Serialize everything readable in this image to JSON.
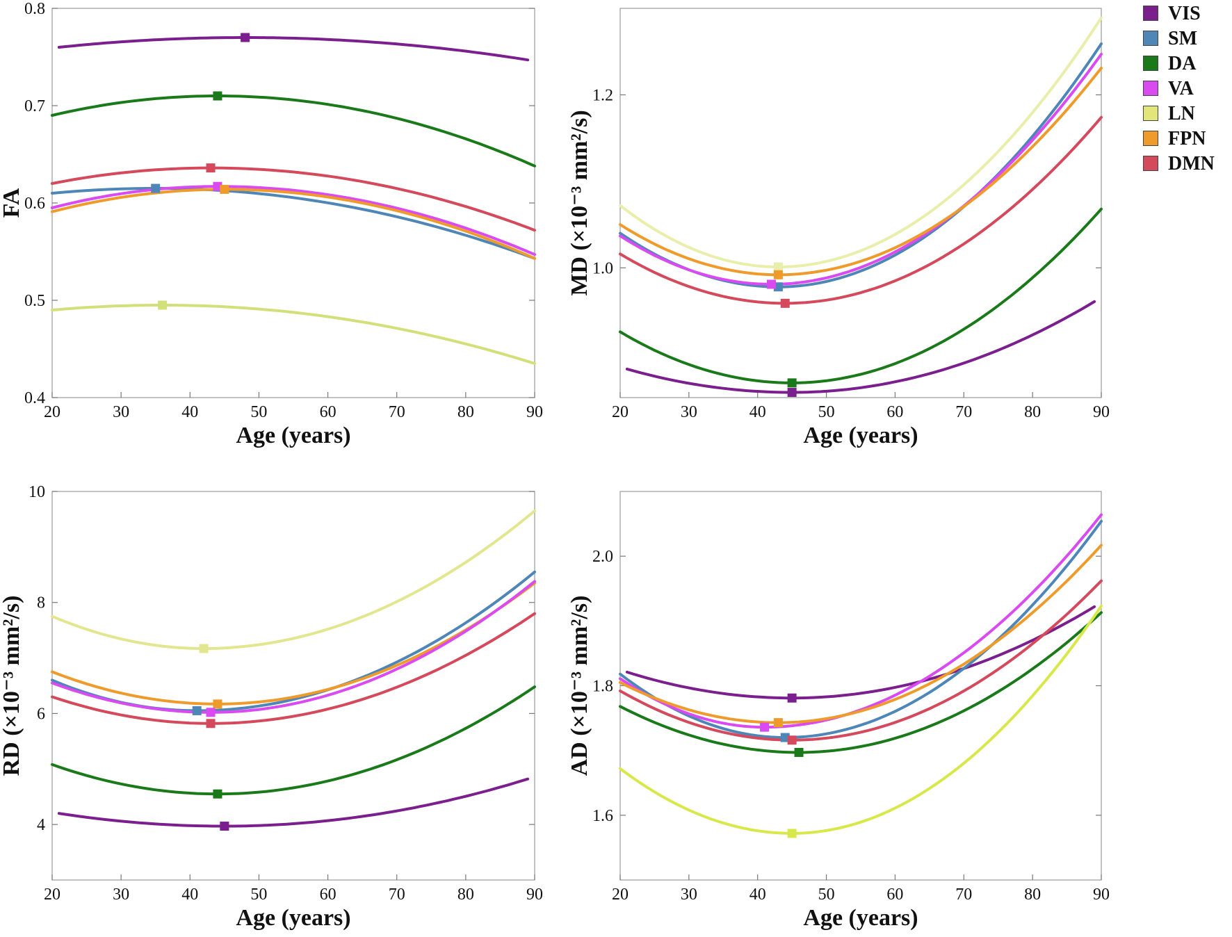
{
  "legend": [
    {
      "key": "VIS",
      "label": "VIS",
      "color": "#7B1F8E"
    },
    {
      "key": "SM",
      "label": "SM",
      "color": "#4E86B8"
    },
    {
      "key": "DA",
      "label": "DA",
      "color": "#1A7A1A"
    },
    {
      "key": "VA",
      "label": "VA",
      "color": "#D94AF0"
    },
    {
      "key": "LN",
      "label": "LN",
      "color": "#E2E67A"
    },
    {
      "key": "FPN",
      "label": "FPN",
      "color": "#EE9B2C"
    },
    {
      "key": "DMN",
      "label": "DMN",
      "color": "#D44A5C"
    }
  ],
  "chart_data": [
    {
      "type": "line",
      "title": "",
      "xlabel": "Age (years)",
      "ylabel": "FA",
      "xlim": [
        20,
        90
      ],
      "ylim": [
        0.4,
        0.8
      ],
      "xticks": [
        "20",
        "30",
        "40",
        "50",
        "60",
        "70",
        "80",
        "90"
      ],
      "yticks": [
        "0.4",
        "0.5",
        "0.6",
        "0.7",
        "0.8"
      ],
      "series": [
        {
          "name": "VIS",
          "color": "#7B1F8E",
          "x_start": 21,
          "x_end": 89,
          "y_start": 0.76,
          "vertex_x": 48,
          "vertex_y": 0.77,
          "y_end": 0.747
        },
        {
          "name": "DA",
          "color": "#1A7A1A",
          "x_start": 20,
          "x_end": 90,
          "y_start": 0.69,
          "vertex_x": 44,
          "vertex_y": 0.71,
          "y_end": 0.638
        },
        {
          "name": "DMN",
          "color": "#D44A5C",
          "x_start": 20,
          "x_end": 90,
          "y_start": 0.62,
          "vertex_x": 43,
          "vertex_y": 0.636,
          "y_end": 0.572
        },
        {
          "name": "SM",
          "color": "#4E86B8",
          "x_start": 20,
          "x_end": 90,
          "y_start": 0.61,
          "vertex_x": 35,
          "vertex_y": 0.615,
          "y_end": 0.543
        },
        {
          "name": "VA",
          "color": "#D94AF0",
          "x_start": 20,
          "x_end": 90,
          "y_start": 0.595,
          "vertex_x": 44,
          "vertex_y": 0.617,
          "y_end": 0.547
        },
        {
          "name": "FPN",
          "color": "#EE9B2C",
          "x_start": 20,
          "x_end": 90,
          "y_start": 0.591,
          "vertex_x": 45,
          "vertex_y": 0.614,
          "y_end": 0.543
        },
        {
          "name": "LN",
          "color": "#D2E07A",
          "x_start": 20,
          "x_end": 90,
          "y_start": 0.49,
          "vertex_x": 36,
          "vertex_y": 0.495,
          "y_end": 0.435
        }
      ]
    },
    {
      "type": "line",
      "title": "",
      "xlabel": "Age (years)",
      "ylabel": "MD (×10⁻³ mm²/s)",
      "xlim": [
        20,
        90
      ],
      "ylim": [
        0.85,
        1.3
      ],
      "xticks": [
        "20",
        "30",
        "40",
        "50",
        "60",
        "70",
        "80",
        "90"
      ],
      "yticks": [
        "1.0",
        "1.2"
      ],
      "ytick_values": [
        1.0,
        1.2
      ],
      "series": [
        {
          "name": "LN",
          "color": "#E9EEAA",
          "x_start": 20,
          "x_end": 90,
          "y_start": 1.072,
          "vertex_x": 43,
          "vertex_y": 1.001,
          "y_end": 1.289
        },
        {
          "name": "SM",
          "color": "#4E86B8",
          "x_start": 20,
          "x_end": 90,
          "y_start": 1.04,
          "vertex_x": 43,
          "vertex_y": 0.978,
          "y_end": 1.259
        },
        {
          "name": "VA",
          "color": "#D94AF0",
          "x_start": 20,
          "x_end": 90,
          "y_start": 1.037,
          "vertex_x": 42,
          "vertex_y": 0.981,
          "y_end": 1.247
        },
        {
          "name": "FPN",
          "color": "#EE9B2C",
          "x_start": 20,
          "x_end": 90,
          "y_start": 1.05,
          "vertex_x": 43,
          "vertex_y": 0.992,
          "y_end": 1.231
        },
        {
          "name": "DMN",
          "color": "#D44A5C",
          "x_start": 20,
          "x_end": 90,
          "y_start": 1.016,
          "vertex_x": 44,
          "vertex_y": 0.959,
          "y_end": 1.174
        },
        {
          "name": "DA",
          "color": "#1A7A1A",
          "x_start": 20,
          "x_end": 90,
          "y_start": 0.926,
          "vertex_x": 45,
          "vertex_y": 0.867,
          "y_end": 1.068
        },
        {
          "name": "VIS",
          "color": "#7B1F8E",
          "x_start": 21,
          "x_end": 89,
          "y_start": 0.883,
          "vertex_x": 45,
          "vertex_y": 0.856,
          "y_end": 0.961
        }
      ]
    },
    {
      "type": "line",
      "title": "",
      "xlabel": "Age (years)",
      "ylabel": "RD (×10⁻³ mm²/s)",
      "xlim": [
        20,
        90
      ],
      "ylim": [
        3.0,
        10.0
      ],
      "xticks": [
        "20",
        "30",
        "40",
        "50",
        "60",
        "70",
        "80",
        "90"
      ],
      "yticks": [
        "4",
        "6",
        "8",
        "10"
      ],
      "series": [
        {
          "name": "LN",
          "color": "#E2E68E",
          "x_start": 20,
          "x_end": 90,
          "y_start": 7.75,
          "vertex_x": 42,
          "vertex_y": 7.17,
          "y_end": 9.65
        },
        {
          "name": "SM",
          "color": "#4E86B8",
          "x_start": 20,
          "x_end": 90,
          "y_start": 6.6,
          "vertex_x": 41,
          "vertex_y": 6.05,
          "y_end": 8.55
        },
        {
          "name": "FPN",
          "color": "#EE9B2C",
          "x_start": 20,
          "x_end": 90,
          "y_start": 6.75,
          "vertex_x": 44,
          "vertex_y": 6.17,
          "y_end": 8.35
        },
        {
          "name": "VA",
          "color": "#D94AF0",
          "x_start": 20,
          "x_end": 90,
          "y_start": 6.55,
          "vertex_x": 43,
          "vertex_y": 6.02,
          "y_end": 8.38
        },
        {
          "name": "DMN",
          "color": "#D44A5C",
          "x_start": 20,
          "x_end": 90,
          "y_start": 6.3,
          "vertex_x": 43,
          "vertex_y": 5.82,
          "y_end": 7.8
        },
        {
          "name": "DA",
          "color": "#1A7A1A",
          "x_start": 20,
          "x_end": 90,
          "y_start": 5.08,
          "vertex_x": 44,
          "vertex_y": 4.55,
          "y_end": 6.48
        },
        {
          "name": "VIS",
          "color": "#7B1F8E",
          "x_start": 21,
          "x_end": 89,
          "y_start": 4.2,
          "vertex_x": 45,
          "vertex_y": 3.97,
          "y_end": 4.82
        }
      ]
    },
    {
      "type": "line",
      "title": "",
      "xlabel": "Age (years)",
      "ylabel": "AD (×10⁻³ mm²/s)",
      "xlim": [
        20,
        90
      ],
      "ylim": [
        1.5,
        2.1
      ],
      "xticks": [
        "20",
        "30",
        "40",
        "50",
        "60",
        "70",
        "80",
        "90"
      ],
      "yticks": [
        "1.6",
        "1.8",
        "2.0"
      ],
      "series": [
        {
          "name": "VIS",
          "color": "#7B1F8E",
          "x_start": 21,
          "x_end": 89,
          "y_start": 1.821,
          "vertex_x": 45,
          "vertex_y": 1.781,
          "y_end": 1.922
        },
        {
          "name": "SM",
          "color": "#4E86B8",
          "x_start": 20,
          "x_end": 90,
          "y_start": 1.818,
          "vertex_x": 44,
          "vertex_y": 1.72,
          "y_end": 2.054
        },
        {
          "name": "VA",
          "color": "#D94AF0",
          "x_start": 20,
          "x_end": 90,
          "y_start": 1.811,
          "vertex_x": 41,
          "vertex_y": 1.736,
          "y_end": 2.064
        },
        {
          "name": "FPN",
          "color": "#EE9B2C",
          "x_start": 20,
          "x_end": 90,
          "y_start": 1.805,
          "vertex_x": 43,
          "vertex_y": 1.743,
          "y_end": 2.017
        },
        {
          "name": "DMN",
          "color": "#D44A5C",
          "x_start": 20,
          "x_end": 90,
          "y_start": 1.792,
          "vertex_x": 45,
          "vertex_y": 1.716,
          "y_end": 1.962
        },
        {
          "name": "DA",
          "color": "#1A7A1A",
          "x_start": 20,
          "x_end": 90,
          "y_start": 1.768,
          "vertex_x": 46,
          "vertex_y": 1.697,
          "y_end": 1.913
        },
        {
          "name": "LN",
          "color": "#D8E84A",
          "x_start": 20,
          "x_end": 90,
          "y_start": 1.672,
          "vertex_x": 45,
          "vertex_y": 1.572,
          "y_end": 1.923
        }
      ]
    }
  ]
}
